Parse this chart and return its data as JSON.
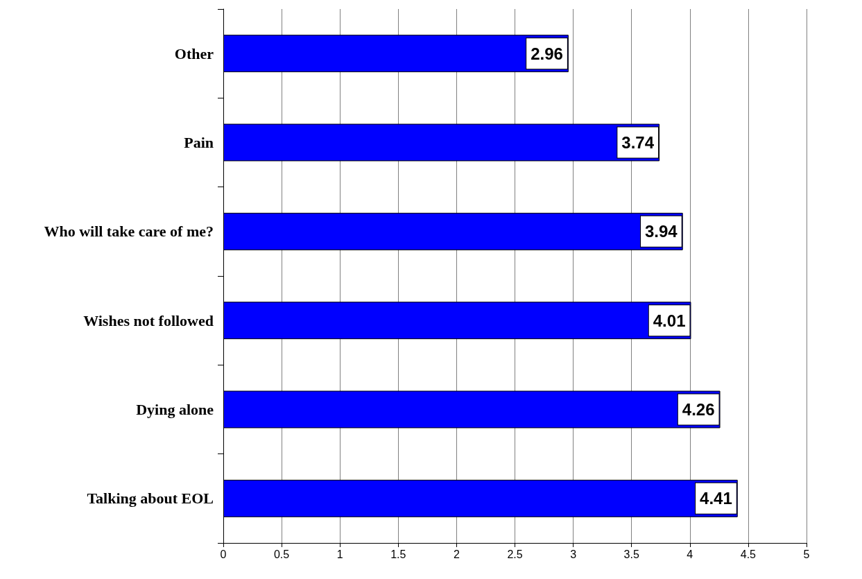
{
  "chart_data": {
    "type": "bar",
    "orientation": "horizontal",
    "categories": [
      "Other",
      "Pain",
      "Who will take care of me?",
      "Wishes not followed",
      "Dying alone",
      "Talking about EOL"
    ],
    "values": [
      2.96,
      3.74,
      3.94,
      4.01,
      4.26,
      4.41
    ],
    "color": "#0000ff",
    "data_labels": true,
    "xlim": [
      0,
      5
    ],
    "xticks": [
      0,
      0.5,
      1,
      1.5,
      2,
      2.5,
      3,
      3.5,
      4,
      4.5,
      5
    ],
    "grid": "x"
  }
}
